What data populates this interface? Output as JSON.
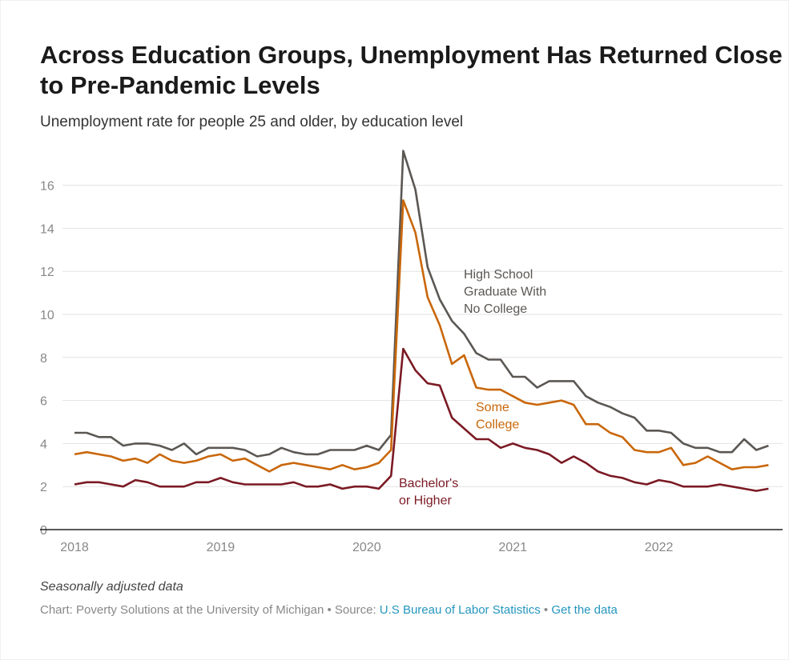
{
  "header": {
    "title": "Across Education Groups, Unemployment Has Returned Close to Pre-Pandemic Levels",
    "subtitle": "Unemployment rate for people 25 and older, by education level"
  },
  "footer": {
    "note": "Seasonally adjusted data",
    "credit": "Chart: Poverty Solutions at the University of Michigan",
    "separator1": " • Source: ",
    "source_link": "U.S Bureau of Labor Statistics",
    "separator2": " • ",
    "data_link": "Get the data"
  },
  "chart_data": {
    "type": "line",
    "title": "Across Education Groups, Unemployment Has Returned Close to Pre-Pandemic Levels",
    "subtitle": "Unemployment rate for people 25 and older, by education level",
    "xlabel": "",
    "ylabel": "",
    "x_ticks": [
      "2018",
      "2019",
      "2020",
      "2021",
      "2022"
    ],
    "y_ticks": [
      0,
      2,
      4,
      6,
      8,
      10,
      12,
      14,
      16
    ],
    "ylim": [
      0,
      17.8
    ],
    "x_start": "2018-01",
    "x_end": "2022-10",
    "x": [
      "2018-01",
      "2018-02",
      "2018-03",
      "2018-04",
      "2018-05",
      "2018-06",
      "2018-07",
      "2018-08",
      "2018-09",
      "2018-10",
      "2018-11",
      "2018-12",
      "2019-01",
      "2019-02",
      "2019-03",
      "2019-04",
      "2019-05",
      "2019-06",
      "2019-07",
      "2019-08",
      "2019-09",
      "2019-10",
      "2019-11",
      "2019-12",
      "2020-01",
      "2020-02",
      "2020-03",
      "2020-04",
      "2020-05",
      "2020-06",
      "2020-07",
      "2020-08",
      "2020-09",
      "2020-10",
      "2020-11",
      "2020-12",
      "2021-01",
      "2021-02",
      "2021-03",
      "2021-04",
      "2021-05",
      "2021-06",
      "2021-07",
      "2021-08",
      "2021-09",
      "2021-10",
      "2021-11",
      "2021-12",
      "2022-01",
      "2022-02",
      "2022-03",
      "2022-04",
      "2022-05",
      "2022-06",
      "2022-07",
      "2022-08",
      "2022-09",
      "2022-10"
    ],
    "gridlines": true,
    "series": [
      {
        "name": "High School Graduate With No College",
        "label_lines": [
          "High School",
          "Graduate With",
          "No College"
        ],
        "color": "#5b5753",
        "values": [
          4.5,
          4.5,
          4.3,
          4.3,
          3.9,
          4.0,
          4.0,
          3.9,
          3.7,
          4.0,
          3.5,
          3.8,
          3.8,
          3.8,
          3.7,
          3.4,
          3.5,
          3.8,
          3.6,
          3.5,
          3.5,
          3.7,
          3.7,
          3.7,
          3.9,
          3.7,
          4.4,
          17.6,
          15.8,
          12.2,
          10.7,
          9.7,
          9.1,
          8.2,
          7.9,
          7.9,
          7.1,
          7.1,
          6.6,
          6.9,
          6.9,
          6.9,
          6.2,
          5.9,
          5.7,
          5.4,
          5.2,
          4.6,
          4.6,
          4.5,
          4.0,
          3.8,
          3.8,
          3.6,
          3.6,
          4.2,
          3.7,
          3.9
        ]
      },
      {
        "name": "Some College",
        "label_lines": [
          "Some",
          "College"
        ],
        "color": "#c9670a",
        "values": [
          3.5,
          3.6,
          3.5,
          3.4,
          3.2,
          3.3,
          3.1,
          3.5,
          3.2,
          3.1,
          3.2,
          3.4,
          3.5,
          3.2,
          3.3,
          3.0,
          2.7,
          3.0,
          3.1,
          3.0,
          2.9,
          2.8,
          3.0,
          2.8,
          2.9,
          3.1,
          3.7,
          15.3,
          13.8,
          10.8,
          9.5,
          7.7,
          8.1,
          6.6,
          6.5,
          6.5,
          6.2,
          5.9,
          5.8,
          5.9,
          6.0,
          5.8,
          4.9,
          4.9,
          4.5,
          4.3,
          3.7,
          3.6,
          3.6,
          3.8,
          3.0,
          3.1,
          3.4,
          3.1,
          2.8,
          2.9,
          2.9,
          3.0
        ]
      },
      {
        "name": "Bachelor's or Higher",
        "label_lines": [
          "Bachelor's",
          "or Higher"
        ],
        "color": "#7b1a24",
        "values": [
          2.1,
          2.2,
          2.2,
          2.1,
          2.0,
          2.3,
          2.2,
          2.0,
          2.0,
          2.0,
          2.2,
          2.2,
          2.4,
          2.2,
          2.1,
          2.1,
          2.1,
          2.1,
          2.2,
          2.0,
          2.0,
          2.1,
          1.9,
          2.0,
          2.0,
          1.9,
          2.5,
          8.4,
          7.4,
          6.8,
          6.7,
          5.2,
          4.7,
          4.2,
          4.2,
          3.8,
          4.0,
          3.8,
          3.7,
          3.5,
          3.1,
          3.4,
          3.1,
          2.7,
          2.5,
          2.4,
          2.2,
          2.1,
          2.3,
          2.2,
          2.0,
          2.0,
          2.0,
          2.1,
          2.0,
          1.9,
          1.8,
          1.9
        ]
      }
    ]
  }
}
